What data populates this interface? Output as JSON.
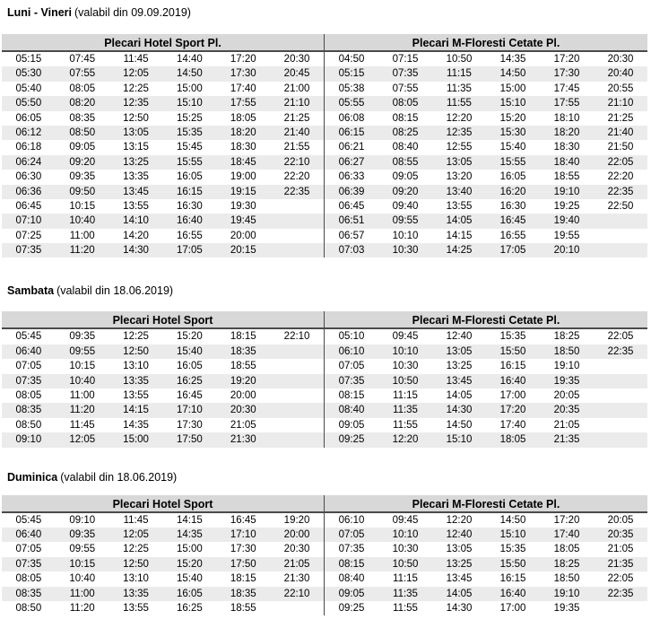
{
  "colors": {
    "header_bg": "#d8d8d8",
    "stripe": "#ebebeb",
    "rule": "#4a4a4a",
    "text": "#000000"
  },
  "sections": [
    {
      "day": "Luni - Vineri",
      "validity": "(valabil din 09.09.2019)",
      "left": {
        "header": "Plecari Hotel Sport Pl.",
        "rows": [
          [
            "05:15",
            "07:45",
            "11:45",
            "14:40",
            "17:20",
            "20:30"
          ],
          [
            "05:30",
            "07:55",
            "12:05",
            "14:50",
            "17:30",
            "20:45"
          ],
          [
            "05:40",
            "08:05",
            "12:25",
            "15:00",
            "17:40",
            "21:00"
          ],
          [
            "05:50",
            "08:20",
            "12:35",
            "15:10",
            "17:55",
            "21:10"
          ],
          [
            "06:05",
            "08:35",
            "12:50",
            "15:25",
            "18:05",
            "21:25"
          ],
          [
            "06:12",
            "08:50",
            "13:05",
            "15:35",
            "18:20",
            "21:40"
          ],
          [
            "06:18",
            "09:05",
            "13:15",
            "15:45",
            "18:30",
            "21:55"
          ],
          [
            "06:24",
            "09:20",
            "13:25",
            "15:55",
            "18:45",
            "22:10"
          ],
          [
            "06:30",
            "09:35",
            "13:35",
            "16:05",
            "19:00",
            "22:20"
          ],
          [
            "06:36",
            "09:50",
            "13:45",
            "16:15",
            "19:15",
            "22:35"
          ],
          [
            "06:45",
            "10:15",
            "13:55",
            "16:30",
            "19:30",
            ""
          ],
          [
            "07:10",
            "10:40",
            "14:10",
            "16:40",
            "19:45",
            ""
          ],
          [
            "07:25",
            "11:00",
            "14:20",
            "16:55",
            "20:00",
            ""
          ],
          [
            "07:35",
            "11:20",
            "14:30",
            "17:05",
            "20:15",
            ""
          ]
        ]
      },
      "right": {
        "header": "Plecari M-Floresti Cetate Pl.",
        "rows": [
          [
            "04:50",
            "07:15",
            "10:50",
            "14:35",
            "17:20",
            "20:30"
          ],
          [
            "05:15",
            "07:35",
            "11:15",
            "14:50",
            "17:30",
            "20:40"
          ],
          [
            "05:38",
            "07:55",
            "11:35",
            "15:00",
            "17:45",
            "20:55"
          ],
          [
            "05:55",
            "08:05",
            "11:55",
            "15:10",
            "17:55",
            "21:10"
          ],
          [
            "06:08",
            "08:15",
            "12:20",
            "15:20",
            "18:10",
            "21:25"
          ],
          [
            "06:15",
            "08:25",
            "12:35",
            "15:30",
            "18:20",
            "21:40"
          ],
          [
            "06:21",
            "08:40",
            "12:55",
            "15:40",
            "18:30",
            "21:50"
          ],
          [
            "06:27",
            "08:55",
            "13:05",
            "15:55",
            "18:40",
            "22:05"
          ],
          [
            "06:33",
            "09:05",
            "13:20",
            "16:05",
            "18:55",
            "22:20"
          ],
          [
            "06:39",
            "09:20",
            "13:40",
            "16:20",
            "19:10",
            "22:35"
          ],
          [
            "06:45",
            "09:40",
            "13:55",
            "16:30",
            "19:25",
            "22:50"
          ],
          [
            "06:51",
            "09:55",
            "14:05",
            "16:45",
            "19:40",
            ""
          ],
          [
            "06:57",
            "10:10",
            "14:15",
            "16:55",
            "19:55",
            ""
          ],
          [
            "07:03",
            "10:30",
            "14:25",
            "17:05",
            "20:10",
            ""
          ]
        ]
      }
    },
    {
      "day": "Sambata",
      "validity": "(valabil din 18.06.2019)",
      "left": {
        "header": "Plecari Hotel Sport",
        "rows": [
          [
            "05:45",
            "09:35",
            "12:25",
            "15:20",
            "18:15",
            "22:10"
          ],
          [
            "06:40",
            "09:55",
            "12:50",
            "15:40",
            "18:35",
            ""
          ],
          [
            "07:05",
            "10:15",
            "13:10",
            "16:05",
            "18:55",
            ""
          ],
          [
            "07:35",
            "10:40",
            "13:35",
            "16:25",
            "19:20",
            ""
          ],
          [
            "08:05",
            "11:00",
            "13:55",
            "16:45",
            "20:00",
            ""
          ],
          [
            "08:35",
            "11:20",
            "14:15",
            "17:10",
            "20:30",
            ""
          ],
          [
            "08:50",
            "11:45",
            "14:35",
            "17:30",
            "21:05",
            ""
          ],
          [
            "09:10",
            "12:05",
            "15:00",
            "17:50",
            "21:30",
            ""
          ]
        ]
      },
      "right": {
        "header": "Plecari M-Floresti Cetate Pl.",
        "rows": [
          [
            "05:10",
            "09:45",
            "12:40",
            "15:35",
            "18:25",
            "22:05"
          ],
          [
            "06:10",
            "10:10",
            "13:05",
            "15:50",
            "18:50",
            "22:35"
          ],
          [
            "07:05",
            "10:30",
            "13:25",
            "16:15",
            "19:10",
            ""
          ],
          [
            "07:35",
            "10:50",
            "13:45",
            "16:40",
            "19:35",
            ""
          ],
          [
            "08:15",
            "11:15",
            "14:05",
            "17:00",
            "20:05",
            ""
          ],
          [
            "08:40",
            "11:35",
            "14:30",
            "17:20",
            "20:35",
            ""
          ],
          [
            "09:05",
            "11:55",
            "14:50",
            "17:40",
            "21:05",
            ""
          ],
          [
            "09:25",
            "12:20",
            "15:10",
            "18:05",
            "21:35",
            ""
          ]
        ]
      }
    },
    {
      "day": "Duminica",
      "validity": "(valabil din 18.06.2019)",
      "left": {
        "header": "Plecari Hotel Sport",
        "rows": [
          [
            "05:45",
            "09:10",
            "11:45",
            "14:15",
            "16:45",
            "19:20"
          ],
          [
            "06:40",
            "09:35",
            "12:05",
            "14:35",
            "17:10",
            "20:00"
          ],
          [
            "07:05",
            "09:55",
            "12:25",
            "15:00",
            "17:30",
            "20:30"
          ],
          [
            "07:35",
            "10:15",
            "12:50",
            "15:20",
            "17:50",
            "21:05"
          ],
          [
            "08:05",
            "10:40",
            "13:10",
            "15:40",
            "18:15",
            "21:30"
          ],
          [
            "08:35",
            "11:00",
            "13:35",
            "16:05",
            "18:35",
            "22:10"
          ],
          [
            "08:50",
            "11:20",
            "13:55",
            "16:25",
            "18:55",
            ""
          ]
        ]
      },
      "right": {
        "header": "Plecari M-Floresti Cetate Pl.",
        "rows": [
          [
            "06:10",
            "09:45",
            "12:20",
            "14:50",
            "17:20",
            "20:05"
          ],
          [
            "07:05",
            "10:10",
            "12:40",
            "15:10",
            "17:40",
            "20:35"
          ],
          [
            "07:35",
            "10:30",
            "13:05",
            "15:35",
            "18:05",
            "21:05"
          ],
          [
            "08:15",
            "10:50",
            "13:25",
            "15:50",
            "18:25",
            "21:35"
          ],
          [
            "08:40",
            "11:15",
            "13:45",
            "16:15",
            "18:50",
            "22:05"
          ],
          [
            "09:05",
            "11:35",
            "14:05",
            "16:40",
            "19:10",
            "22:35"
          ],
          [
            "09:25",
            "11:55",
            "14:30",
            "17:00",
            "19:35",
            ""
          ]
        ]
      }
    }
  ]
}
